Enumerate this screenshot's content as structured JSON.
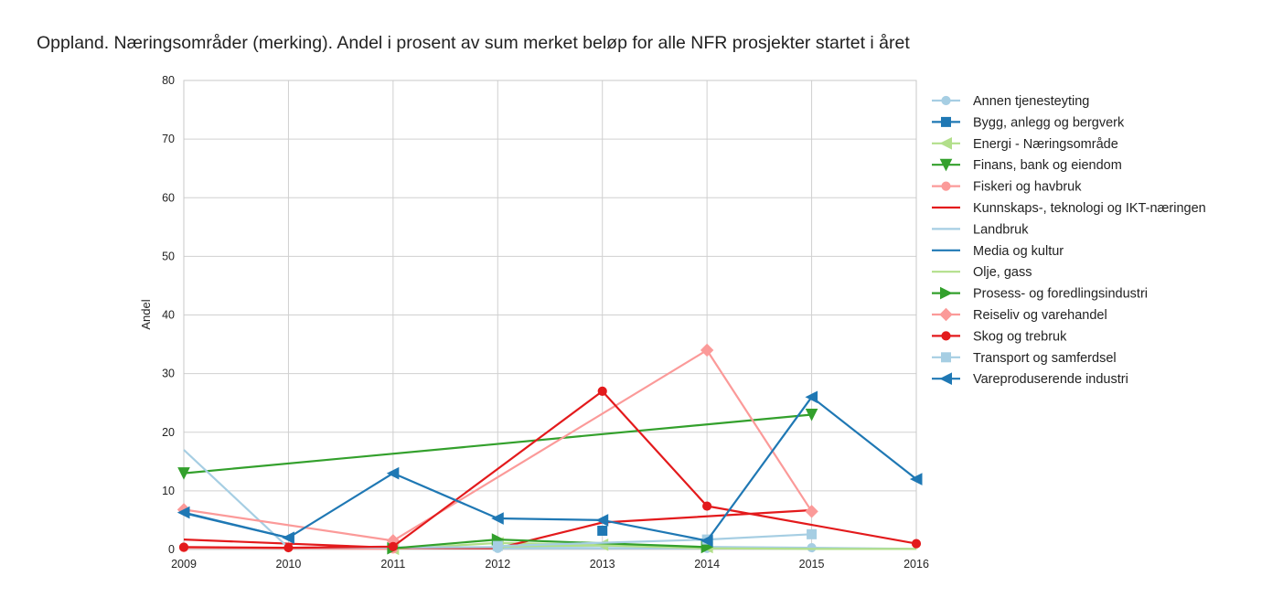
{
  "chart_data": {
    "type": "line",
    "title": "Oppland. Næringsområder (merking). Andel i prosent av sum merket beløp for alle NFR prosjekter startet i året",
    "xlabel": "",
    "ylabel": "Andel",
    "x": [
      2009,
      2010,
      2011,
      2012,
      2013,
      2014,
      2015,
      2016
    ],
    "xlim": [
      2009,
      2016
    ],
    "ylim": [
      0,
      80
    ],
    "yticks": [
      0,
      10,
      20,
      30,
      40,
      50,
      60,
      70,
      80
    ],
    "grid": true,
    "legend_position": "right",
    "series": [
      {
        "name": "Annen tjenesteyting",
        "color": "#a6cee3",
        "marker": "circle",
        "points": [
          [
            2012,
            0.2
          ],
          [
            2014,
            0.2
          ],
          [
            2015,
            0.3
          ]
        ]
      },
      {
        "name": "Bygg, anlegg og bergverk",
        "color": "#1f78b4",
        "marker": "square",
        "points": [
          [
            2013,
            3.2
          ]
        ]
      },
      {
        "name": "Energi - Næringsområde",
        "color": "#b2df8a",
        "marker": "triangle-left",
        "points": [
          [
            2011,
            0.1
          ],
          [
            2012,
            1.1
          ],
          [
            2013,
            0.8
          ],
          [
            2014,
            0.4
          ]
        ]
      },
      {
        "name": "Finans, bank og eiendom",
        "color": "#33a02c",
        "marker": "triangle-down",
        "points": [
          [
            2009,
            13
          ],
          [
            2015,
            23
          ]
        ]
      },
      {
        "name": "Fiskeri og havbruk",
        "color": "#fb9a99",
        "marker": "circle",
        "points": [
          [
            2009,
            0.3
          ],
          [
            2011,
            0.1
          ]
        ]
      },
      {
        "name": "Kunnskaps-, teknologi og IKT-næringen",
        "color": "#e31a1c",
        "marker": "none",
        "points": [
          [
            2009,
            1.7
          ],
          [
            2011,
            0.3
          ],
          [
            2012,
            0.2
          ],
          [
            2013,
            4.6
          ],
          [
            2015,
            6.7
          ]
        ]
      },
      {
        "name": "Landbruk",
        "color": "#a6cee3",
        "marker": "none",
        "points": [
          [
            2009,
            17
          ],
          [
            2010,
            0.3
          ],
          [
            2012,
            0.4
          ],
          [
            2013,
            0.6
          ],
          [
            2015,
            0.3
          ],
          [
            2016,
            0.1
          ]
        ]
      },
      {
        "name": "Media og kultur",
        "color": "#1f78b4",
        "marker": "none",
        "points": [
          [
            2009,
            6.2
          ],
          [
            2010,
            2
          ]
        ]
      },
      {
        "name": "Olje, gass",
        "color": "#b2df8a",
        "marker": "none",
        "points": [
          [
            2012,
            0.5
          ],
          [
            2013,
            0.7
          ],
          [
            2014,
            0.2
          ],
          [
            2015,
            0.1
          ],
          [
            2016,
            0.1
          ]
        ]
      },
      {
        "name": "Prosess- og foredlingsindustri",
        "color": "#33a02c",
        "marker": "triangle-right",
        "points": [
          [
            2011,
            0.2
          ],
          [
            2012,
            1.7
          ],
          [
            2014,
            0.4
          ]
        ]
      },
      {
        "name": "Reiseliv og varehandel",
        "color": "#fb9a99",
        "marker": "diamond",
        "points": [
          [
            2009,
            6.8
          ],
          [
            2011,
            1.5
          ],
          [
            2014,
            34
          ],
          [
            2015,
            6.5
          ]
        ]
      },
      {
        "name": "Skog og trebruk",
        "color": "#e31a1c",
        "marker": "circle",
        "points": [
          [
            2009,
            0.4
          ],
          [
            2010,
            0.3
          ],
          [
            2011,
            0.5
          ],
          [
            2013,
            27
          ],
          [
            2014,
            7.4
          ],
          [
            2016,
            1
          ]
        ]
      },
      {
        "name": "Transport og samferdsel",
        "color": "#a6cee3",
        "marker": "square",
        "points": [
          [
            2012,
            0.6
          ],
          [
            2014,
            1.7
          ],
          [
            2015,
            2.6
          ]
        ]
      },
      {
        "name": "Vareproduserende industri",
        "color": "#1f78b4",
        "marker": "triangle-left",
        "points": [
          [
            2009,
            6.3
          ],
          [
            2010,
            2
          ],
          [
            2011,
            13
          ],
          [
            2012,
            5.3
          ],
          [
            2013,
            5
          ],
          [
            2014,
            1.5
          ],
          [
            2015,
            26
          ],
          [
            2016,
            12
          ]
        ]
      }
    ]
  }
}
